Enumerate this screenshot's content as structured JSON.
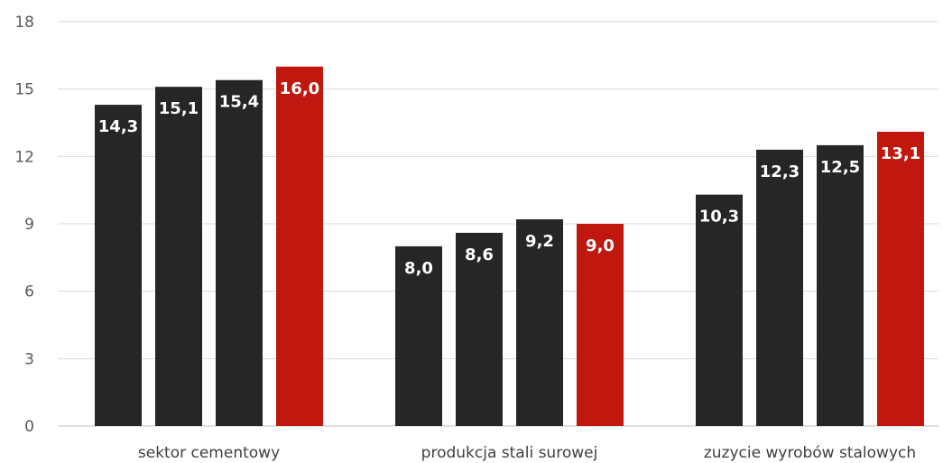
{
  "colors": {
    "dark_bar": "#262626",
    "highlight_bar": "#c0170f",
    "grid": "#d9d9d9",
    "axis": "#bfbfbf",
    "tick_text": "#595959",
    "category_text": "#404040",
    "label_text": "#ffffff"
  },
  "chart_data": {
    "type": "bar",
    "title": "",
    "xlabel": "",
    "ylabel": "",
    "ylim": [
      0,
      18
    ],
    "y_ticks": [
      0,
      3,
      6,
      9,
      12,
      15,
      18
    ],
    "y_tick_labels": [
      "0",
      "3",
      "6",
      "9",
      "12",
      "15",
      "18"
    ],
    "grid": true,
    "legend": "none",
    "categories": [
      "sektor cementowy",
      "produkcja stali surowej",
      "zuzycie wyrobów stalowych"
    ],
    "series": [
      {
        "values": [
          14.3,
          8.0,
          10.3
        ],
        "labels": [
          "14,3",
          "8,0",
          "10,3"
        ],
        "color": "#262626"
      },
      {
        "values": [
          15.1,
          8.6,
          12.3
        ],
        "labels": [
          "15,1",
          "8,6",
          "12,3"
        ],
        "color": "#262626"
      },
      {
        "values": [
          15.4,
          9.2,
          12.5
        ],
        "labels": [
          "15,4",
          "9,2",
          "12,5"
        ],
        "color": "#262626"
      },
      {
        "values": [
          16.0,
          9.0,
          13.1
        ],
        "labels": [
          "16,0",
          "9,0",
          "13,1"
        ],
        "color": "#c0170f"
      }
    ]
  }
}
